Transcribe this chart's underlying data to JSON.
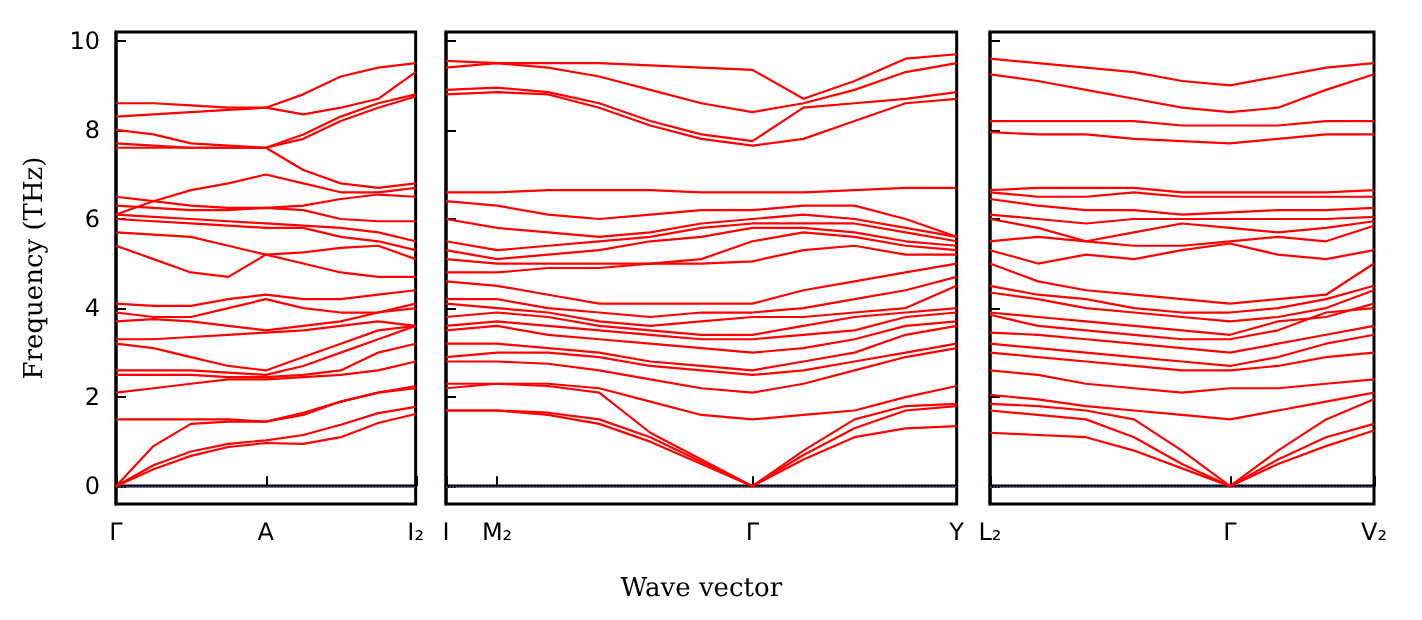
{
  "chart_data": [
    {
      "type": "line",
      "ylabel": "Frequency (THz)",
      "categories": [
        "Γ",
        null,
        null,
        null,
        "A",
        null,
        null,
        null,
        "I₂"
      ],
      "ylim": [
        -0.4,
        10.2
      ],
      "yticks": [
        0,
        2,
        4,
        6,
        8,
        10
      ],
      "line_style": "solid",
      "ref_lines": [
        {
          "axis": "y",
          "value": 0,
          "color": "#6666cc",
          "line_style": "dotted"
        }
      ],
      "series": [
        {
          "color": "#ff0000",
          "values": [
            0,
            0.38,
            0.68,
            0.88,
            0.97,
            0.95,
            1.1,
            1.42,
            1.62
          ]
        },
        {
          "color": "#ff0000",
          "values": [
            0,
            0.47,
            0.78,
            0.95,
            1.03,
            1.15,
            1.38,
            1.64,
            1.78
          ]
        },
        {
          "color": "#ff0000",
          "values": [
            0,
            0.9,
            1.4,
            1.45,
            1.45,
            1.6,
            1.9,
            2.1,
            2.2
          ]
        },
        {
          "color": "#ff0000",
          "values": [
            1.5,
            1.5,
            1.5,
            1.5,
            1.45,
            1.65,
            1.9,
            2.1,
            2.25
          ]
        },
        {
          "color": "#ff0000",
          "values": [
            2.1,
            2.2,
            2.3,
            2.4,
            2.4,
            2.45,
            2.5,
            2.6,
            2.8
          ]
        },
        {
          "color": "#ff0000",
          "values": [
            2.5,
            2.5,
            2.5,
            2.45,
            2.45,
            2.5,
            2.6,
            3.0,
            3.2
          ]
        },
        {
          "color": "#ff0000",
          "values": [
            2.6,
            2.6,
            2.6,
            2.55,
            2.5,
            2.7,
            3.0,
            3.3,
            3.6
          ]
        },
        {
          "color": "#ff0000",
          "values": [
            3.2,
            3.1,
            2.9,
            2.7,
            2.6,
            2.9,
            3.2,
            3.5,
            3.6
          ]
        },
        {
          "color": "#ff0000",
          "values": [
            3.3,
            3.3,
            3.35,
            3.4,
            3.45,
            3.5,
            3.6,
            3.7,
            3.6
          ]
        },
        {
          "color": "#ff0000",
          "values": [
            3.7,
            3.75,
            3.7,
            3.6,
            3.5,
            3.6,
            3.7,
            3.9,
            4.0
          ]
        },
        {
          "color": "#ff0000",
          "values": [
            3.9,
            3.8,
            3.8,
            4.0,
            4.2,
            4.0,
            3.9,
            3.9,
            4.1
          ]
        },
        {
          "color": "#ff0000",
          "values": [
            4.1,
            4.05,
            4.05,
            4.2,
            4.3,
            4.2,
            4.2,
            4.3,
            4.4
          ]
        },
        {
          "color": "#ff0000",
          "values": [
            5.4,
            5.1,
            4.8,
            4.7,
            5.2,
            5.0,
            4.8,
            4.7,
            4.7
          ]
        },
        {
          "color": "#ff0000",
          "values": [
            5.7,
            5.65,
            5.6,
            5.4,
            5.2,
            5.25,
            5.35,
            5.4,
            5.1
          ]
        },
        {
          "color": "#ff0000",
          "values": [
            6.0,
            5.95,
            5.9,
            5.85,
            5.8,
            5.8,
            5.6,
            5.5,
            5.3
          ]
        },
        {
          "color": "#ff0000",
          "values": [
            6.1,
            6.05,
            6.0,
            5.95,
            5.9,
            5.85,
            5.8,
            5.7,
            5.5
          ]
        },
        {
          "color": "#ff0000",
          "values": [
            6.3,
            6.25,
            6.2,
            6.2,
            6.25,
            6.2,
            6.0,
            5.95,
            5.95
          ]
        },
        {
          "color": "#ff0000",
          "values": [
            6.5,
            6.4,
            6.3,
            6.25,
            6.25,
            6.3,
            6.45,
            6.55,
            6.5
          ]
        },
        {
          "color": "#ff0000",
          "values": [
            6.1,
            6.4,
            6.65,
            6.8,
            7.0,
            6.8,
            6.6,
            6.6,
            6.7
          ]
        },
        {
          "color": "#ff0000",
          "values": [
            7.6,
            7.6,
            7.6,
            7.6,
            7.6,
            7.1,
            6.8,
            6.7,
            6.8
          ]
        },
        {
          "color": "#ff0000",
          "values": [
            7.7,
            7.65,
            7.6,
            7.6,
            7.6,
            7.8,
            8.2,
            8.5,
            8.75
          ]
        },
        {
          "color": "#ff0000",
          "values": [
            8.0,
            7.9,
            7.7,
            7.65,
            7.6,
            7.9,
            8.3,
            8.6,
            8.8
          ]
        },
        {
          "color": "#ff0000",
          "values": [
            8.3,
            8.35,
            8.4,
            8.45,
            8.5,
            8.35,
            8.5,
            8.7,
            9.3
          ]
        },
        {
          "color": "#ff0000",
          "values": [
            8.6,
            8.6,
            8.55,
            8.5,
            8.5,
            8.8,
            9.2,
            9.4,
            9.5
          ]
        }
      ]
    },
    {
      "type": "line",
      "xlabel": "Wave vector",
      "categories": [
        "I",
        "M₂",
        null,
        null,
        null,
        null,
        "Γ",
        null,
        null,
        null,
        "Y"
      ],
      "ylim": [
        -0.4,
        10.2
      ],
      "yticks": [
        0,
        2,
        4,
        6,
        8,
        10
      ],
      "tick_labels": "x",
      "line_style": "solid",
      "ref_lines": [
        {
          "axis": "y",
          "value": 0,
          "color": "#6666cc",
          "line_style": "dotted"
        }
      ],
      "series": [
        {
          "color": "#ff0000",
          "values": [
            1.7,
            1.7,
            1.6,
            1.4,
            1.0,
            0.5,
            0,
            0.6,
            1.1,
            1.3,
            1.35
          ]
        },
        {
          "color": "#ff0000",
          "values": [
            1.7,
            1.7,
            1.65,
            1.5,
            1.1,
            0.55,
            0,
            0.7,
            1.3,
            1.7,
            1.8
          ]
        },
        {
          "color": "#ff0000",
          "values": [
            2.2,
            2.3,
            2.25,
            2.1,
            1.2,
            0.6,
            0,
            0.8,
            1.5,
            1.8,
            1.85
          ]
        },
        {
          "color": "#ff0000",
          "values": [
            2.3,
            2.3,
            2.3,
            2.2,
            1.9,
            1.6,
            1.5,
            1.6,
            1.7,
            2.0,
            2.25
          ]
        },
        {
          "color": "#ff0000",
          "values": [
            2.8,
            2.8,
            2.75,
            2.6,
            2.4,
            2.2,
            2.1,
            2.3,
            2.6,
            2.9,
            3.1
          ]
        },
        {
          "color": "#ff0000",
          "values": [
            2.9,
            3.0,
            3.0,
            2.9,
            2.7,
            2.6,
            2.5,
            2.6,
            2.8,
            3.0,
            3.2
          ]
        },
        {
          "color": "#ff0000",
          "values": [
            3.2,
            3.2,
            3.1,
            3.0,
            2.8,
            2.7,
            2.6,
            2.8,
            3.0,
            3.4,
            3.6
          ]
        },
        {
          "color": "#ff0000",
          "values": [
            3.5,
            3.6,
            3.4,
            3.3,
            3.2,
            3.1,
            3.0,
            3.1,
            3.3,
            3.6,
            3.7
          ]
        },
        {
          "color": "#ff0000",
          "values": [
            3.6,
            3.7,
            3.6,
            3.5,
            3.4,
            3.3,
            3.3,
            3.4,
            3.5,
            3.8,
            3.9
          ]
        },
        {
          "color": "#ff0000",
          "values": [
            3.8,
            3.9,
            3.8,
            3.6,
            3.5,
            3.4,
            3.4,
            3.6,
            3.8,
            3.9,
            4.0
          ]
        },
        {
          "color": "#ff0000",
          "values": [
            4.1,
            4.0,
            3.9,
            3.7,
            3.6,
            3.7,
            3.8,
            3.8,
            3.9,
            4.0,
            4.5
          ]
        },
        {
          "color": "#ff0000",
          "values": [
            4.2,
            4.2,
            4.0,
            3.9,
            3.8,
            3.9,
            3.9,
            4.0,
            4.2,
            4.4,
            4.7
          ]
        },
        {
          "color": "#ff0000",
          "values": [
            4.6,
            4.5,
            4.3,
            4.1,
            4.1,
            4.1,
            4.1,
            4.4,
            4.6,
            4.8,
            5.0
          ]
        },
        {
          "color": "#ff0000",
          "values": [
            4.8,
            4.8,
            4.9,
            4.9,
            5.0,
            5.0,
            5.05,
            5.3,
            5.4,
            5.2,
            5.2
          ]
        },
        {
          "color": "#ff0000",
          "values": [
            5.1,
            5.0,
            5.0,
            5.0,
            5.0,
            5.1,
            5.5,
            5.7,
            5.6,
            5.4,
            5.3
          ]
        },
        {
          "color": "#ff0000",
          "values": [
            5.3,
            5.1,
            5.2,
            5.3,
            5.5,
            5.6,
            5.8,
            5.8,
            5.7,
            5.5,
            5.4
          ]
        },
        {
          "color": "#ff0000",
          "values": [
            5.5,
            5.3,
            5.4,
            5.5,
            5.6,
            5.8,
            5.9,
            5.9,
            5.9,
            5.7,
            5.5
          ]
        },
        {
          "color": "#ff0000",
          "values": [
            6.0,
            5.8,
            5.7,
            5.6,
            5.7,
            5.9,
            6.0,
            6.1,
            6.0,
            5.8,
            5.6
          ]
        },
        {
          "color": "#ff0000",
          "values": [
            6.4,
            6.3,
            6.1,
            6.0,
            6.1,
            6.2,
            6.2,
            6.3,
            6.3,
            6.0,
            5.6
          ]
        },
        {
          "color": "#ff0000",
          "values": [
            6.6,
            6.6,
            6.65,
            6.65,
            6.65,
            6.6,
            6.6,
            6.6,
            6.65,
            6.7,
            6.7
          ]
        },
        {
          "color": "#ff0000",
          "values": [
            8.8,
            8.85,
            8.8,
            8.5,
            8.1,
            7.8,
            7.65,
            7.8,
            8.2,
            8.6,
            8.7
          ]
        },
        {
          "color": "#ff0000",
          "values": [
            8.9,
            8.95,
            8.85,
            8.6,
            8.2,
            7.9,
            7.75,
            8.5,
            8.6,
            8.7,
            8.85
          ]
        },
        {
          "color": "#ff0000",
          "values": [
            9.4,
            9.5,
            9.4,
            9.2,
            8.9,
            8.6,
            8.4,
            8.6,
            8.9,
            9.3,
            9.5
          ]
        },
        {
          "color": "#ff0000",
          "values": [
            9.55,
            9.5,
            9.5,
            9.5,
            9.45,
            9.4,
            9.35,
            8.7,
            9.1,
            9.6,
            9.7
          ]
        }
      ]
    },
    {
      "type": "line",
      "categories": [
        "L₂",
        null,
        null,
        null,
        null,
        "Γ",
        null,
        null,
        "V₂"
      ],
      "ylim": [
        -0.4,
        10.2
      ],
      "yticks": [
        0,
        2,
        4,
        6,
        8,
        10
      ],
      "tick_labels": "x",
      "line_style": "solid",
      "ref_lines": [
        {
          "axis": "y",
          "value": 0,
          "color": "#6666cc",
          "line_style": "dotted"
        }
      ],
      "series": [
        {
          "color": "#ff0000",
          "values": [
            1.2,
            1.15,
            1.1,
            0.8,
            0.4,
            0,
            0.5,
            0.9,
            1.25
          ]
        },
        {
          "color": "#ff0000",
          "values": [
            1.7,
            1.6,
            1.5,
            1.1,
            0.5,
            0,
            0.6,
            1.1,
            1.4
          ]
        },
        {
          "color": "#ff0000",
          "values": [
            1.85,
            1.8,
            1.7,
            1.5,
            0.8,
            0,
            0.8,
            1.5,
            1.95
          ]
        },
        {
          "color": "#ff0000",
          "values": [
            2.05,
            1.95,
            1.8,
            1.7,
            1.6,
            1.5,
            1.7,
            1.9,
            2.1
          ]
        },
        {
          "color": "#ff0000",
          "values": [
            2.6,
            2.5,
            2.3,
            2.2,
            2.1,
            2.2,
            2.2,
            2.3,
            2.4
          ]
        },
        {
          "color": "#ff0000",
          "values": [
            3.0,
            2.9,
            2.8,
            2.7,
            2.6,
            2.6,
            2.7,
            2.9,
            3.0
          ]
        },
        {
          "color": "#ff0000",
          "values": [
            3.2,
            3.1,
            3.0,
            2.9,
            2.8,
            2.7,
            2.9,
            3.2,
            3.4
          ]
        },
        {
          "color": "#ff0000",
          "values": [
            3.45,
            3.4,
            3.3,
            3.2,
            3.1,
            3.0,
            3.2,
            3.4,
            3.6
          ]
        },
        {
          "color": "#ff0000",
          "values": [
            3.85,
            3.6,
            3.5,
            3.4,
            3.3,
            3.3,
            3.5,
            3.9,
            4.0
          ]
        },
        {
          "color": "#ff0000",
          "values": [
            3.9,
            3.8,
            3.7,
            3.6,
            3.5,
            3.4,
            3.7,
            3.8,
            4.1
          ]
        },
        {
          "color": "#ff0000",
          "values": [
            4.35,
            4.2,
            4.0,
            3.9,
            3.8,
            3.7,
            3.8,
            4.0,
            4.4
          ]
        },
        {
          "color": "#ff0000",
          "values": [
            4.5,
            4.3,
            4.2,
            4.0,
            3.9,
            3.9,
            4.0,
            4.2,
            4.5
          ]
        },
        {
          "color": "#ff0000",
          "values": [
            5.0,
            4.6,
            4.4,
            4.3,
            4.2,
            4.1,
            4.2,
            4.3,
            5.0
          ]
        },
        {
          "color": "#ff0000",
          "values": [
            5.3,
            5.0,
            5.2,
            5.1,
            5.3,
            5.45,
            5.2,
            5.1,
            5.3
          ]
        },
        {
          "color": "#ff0000",
          "values": [
            5.5,
            5.6,
            5.5,
            5.4,
            5.4,
            5.5,
            5.6,
            5.5,
            5.85
          ]
        },
        {
          "color": "#ff0000",
          "values": [
            6.0,
            5.8,
            5.5,
            5.7,
            5.9,
            5.8,
            5.7,
            5.8,
            5.95
          ]
        },
        {
          "color": "#ff0000",
          "values": [
            6.1,
            6.0,
            5.9,
            6.0,
            6.0,
            6.0,
            6.0,
            6.0,
            6.05
          ]
        },
        {
          "color": "#ff0000",
          "values": [
            6.45,
            6.3,
            6.2,
            6.2,
            6.1,
            6.15,
            6.2,
            6.2,
            6.25
          ]
        },
        {
          "color": "#ff0000",
          "values": [
            6.6,
            6.5,
            6.5,
            6.6,
            6.5,
            6.5,
            6.5,
            6.5,
            6.5
          ]
        },
        {
          "color": "#ff0000",
          "values": [
            6.65,
            6.7,
            6.7,
            6.7,
            6.6,
            6.6,
            6.6,
            6.6,
            6.65
          ]
        },
        {
          "color": "#ff0000",
          "values": [
            7.95,
            7.9,
            7.9,
            7.8,
            7.75,
            7.7,
            7.8,
            7.9,
            7.9
          ]
        },
        {
          "color": "#ff0000",
          "values": [
            8.2,
            8.2,
            8.2,
            8.2,
            8.1,
            8.1,
            8.1,
            8.2,
            8.2
          ]
        },
        {
          "color": "#ff0000",
          "values": [
            9.25,
            9.1,
            8.9,
            8.7,
            8.5,
            8.4,
            8.5,
            8.9,
            9.25
          ]
        },
        {
          "color": "#ff0000",
          "values": [
            9.6,
            9.5,
            9.4,
            9.3,
            9.1,
            9.0,
            9.2,
            9.4,
            9.5
          ]
        }
      ]
    }
  ]
}
